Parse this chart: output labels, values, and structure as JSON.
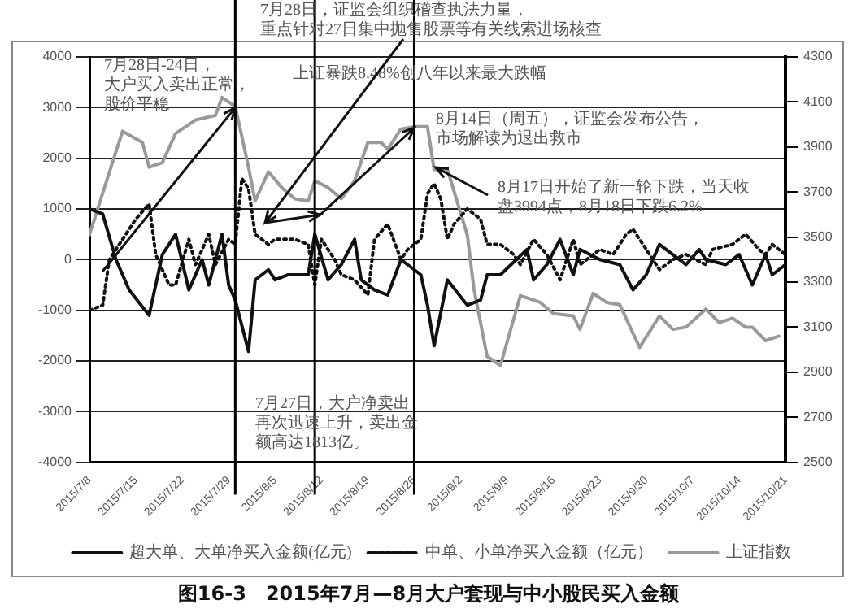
{
  "chart_data": {
    "type": "line",
    "title": "图16-3　2015年7月—8月大户套现与中小股民买入金额",
    "xlim": [
      "2015-07-08",
      "2015-10-21"
    ],
    "xticks": [
      {
        "value": "2015-07-08",
        "label": "2015/7/8"
      },
      {
        "value": "2015-07-15",
        "label": "2015/7/15"
      },
      {
        "value": "2015-07-22",
        "label": "2015/7/22"
      },
      {
        "value": "2015-07-29",
        "label": "2015/7/29"
      },
      {
        "value": "2015-08-05",
        "label": "2015/8/5"
      },
      {
        "value": "2015-08-12",
        "label": "2015/8/12"
      },
      {
        "value": "2015-08-19",
        "label": "2015/8/19"
      },
      {
        "value": "2015-08-26",
        "label": "2015/8/26"
      },
      {
        "value": "2015-09-02",
        "label": "2015/9/2"
      },
      {
        "value": "2015-09-09",
        "label": "2015/9/9"
      },
      {
        "value": "2015-09-16",
        "label": "2015/9/16"
      },
      {
        "value": "2015-09-23",
        "label": "2015/9/23"
      },
      {
        "value": "2015-09-30",
        "label": "2015/9/30"
      },
      {
        "value": "2015-10-07",
        "label": "2015/10/7"
      },
      {
        "value": "2015-10-14",
        "label": "2015/10/14"
      },
      {
        "value": "2015-10-21",
        "label": "2015/10/21"
      }
    ],
    "ylim": [
      -4000,
      4000
    ],
    "yticks": [
      -4000,
      -3000,
      -2000,
      -1000,
      0,
      1000,
      2000,
      3000,
      4000
    ],
    "y2lim": [
      2500,
      4300
    ],
    "y2ticks": [
      2500,
      2700,
      2900,
      3100,
      3300,
      3500,
      3700,
      3900,
      4100,
      4300
    ],
    "grid": "y",
    "legend": "bottom",
    "marker": "none",
    "series": [
      {
        "name": "超大单、大单净买入金额(亿元)",
        "color": "#111111",
        "line_style": "solid",
        "x": [
          "2015-07-08",
          "2015-07-10",
          "2015-07-12",
          "2015-07-14",
          "2015-07-17",
          "2015-07-19",
          "2015-07-21",
          "2015-07-23",
          "2015-07-25",
          "2015-07-26",
          "2015-07-28",
          "2015-07-29",
          "2015-07-30",
          "2015-08-01",
          "2015-08-02",
          "2015-08-04",
          "2015-08-05",
          "2015-08-07",
          "2015-08-08",
          "2015-08-10",
          "2015-08-11",
          "2015-08-13",
          "2015-08-15",
          "2015-08-17",
          "2015-08-18",
          "2015-08-20",
          "2015-08-22",
          "2015-08-24",
          "2015-08-26",
          "2015-08-27",
          "2015-08-28",
          "2015-08-29",
          "2015-08-31",
          "2015-09-03",
          "2015-09-05",
          "2015-09-06",
          "2015-09-08",
          "2015-09-12",
          "2015-09-13",
          "2015-09-15",
          "2015-09-17",
          "2015-09-19",
          "2015-09-20",
          "2015-09-23",
          "2015-09-26",
          "2015-09-28",
          "2015-09-30",
          "2015-10-02",
          "2015-10-04",
          "2015-10-06",
          "2015-10-08",
          "2015-10-09",
          "2015-10-12",
          "2015-10-14",
          "2015-10-16",
          "2015-10-18",
          "2015-10-19",
          "2015-10-21"
        ],
        "values": [
          1000,
          900,
          0,
          -600,
          -1100,
          100,
          500,
          -600,
          0,
          -500,
          500,
          -500,
          -800,
          -1813,
          -400,
          -200,
          -400,
          -300,
          -300,
          -300,
          500,
          -400,
          -100,
          400,
          -400,
          -600,
          -700,
          0,
          -200,
          -300,
          -900,
          -1700,
          -400,
          -900,
          -800,
          -300,
          -300,
          200,
          -400,
          -100,
          400,
          -300,
          200,
          0,
          -100,
          -600,
          -300,
          300,
          100,
          -100,
          200,
          0,
          -100,
          100,
          -500,
          100,
          -300,
          -100
        ]
      },
      {
        "name": "中单、小单净买入金额（亿元）",
        "color": "#111111",
        "line_style": "dotted",
        "x": [
          "2015-07-08",
          "2015-07-10",
          "2015-07-11",
          "2015-07-13",
          "2015-07-15",
          "2015-07-17",
          "2015-07-18",
          "2015-07-20",
          "2015-07-21",
          "2015-07-23",
          "2015-07-24",
          "2015-07-26",
          "2015-07-27",
          "2015-07-29",
          "2015-07-30",
          "2015-07-31",
          "2015-08-01",
          "2015-08-02",
          "2015-08-04",
          "2015-08-05",
          "2015-08-07",
          "2015-08-08",
          "2015-08-10",
          "2015-08-11",
          "2015-08-12",
          "2015-08-14",
          "2015-08-15",
          "2015-08-17",
          "2015-08-19",
          "2015-08-20",
          "2015-08-22",
          "2015-08-24",
          "2015-08-25",
          "2015-08-27",
          "2015-08-28",
          "2015-08-29",
          "2015-08-30",
          "2015-08-31",
          "2015-09-01",
          "2015-09-03",
          "2015-09-05",
          "2015-09-06",
          "2015-09-08",
          "2015-09-10",
          "2015-09-11",
          "2015-09-13",
          "2015-09-15",
          "2015-09-17",
          "2015-09-19",
          "2015-09-20",
          "2015-09-22",
          "2015-09-23",
          "2015-09-25",
          "2015-09-27",
          "2015-09-28",
          "2015-09-30",
          "2015-10-02",
          "2015-10-04",
          "2015-10-06",
          "2015-10-09",
          "2015-10-10",
          "2015-10-13",
          "2015-10-15",
          "2015-10-17",
          "2015-10-18",
          "2015-10-19",
          "2015-10-21"
        ],
        "values": [
          -1000,
          -900,
          0,
          400,
          800,
          1100,
          100,
          -500,
          -500,
          400,
          -100,
          500,
          -100,
          400,
          300,
          1600,
          1400,
          500,
          300,
          400,
          400,
          400,
          300,
          -500,
          400,
          0,
          -300,
          -400,
          -700,
          400,
          700,
          0,
          200,
          400,
          1300,
          1500,
          1200,
          400,
          700,
          1000,
          800,
          300,
          300,
          100,
          -100,
          400,
          100,
          -400,
          400,
          -100,
          100,
          200,
          100,
          500,
          600,
          200,
          -200,
          0,
          100,
          -100,
          200,
          300,
          500,
          200,
          100,
          300,
          100
        ]
      },
      {
        "name": "上证指数",
        "color": "#999999",
        "line_style": "solid",
        "axis": "y2",
        "x": [
          "2015-07-08",
          "2015-07-12",
          "2015-07-13",
          "2015-07-16",
          "2015-07-17",
          "2015-07-19",
          "2015-07-21",
          "2015-07-24",
          "2015-07-27",
          "2015-07-28",
          "2015-07-30",
          "2015-08-01",
          "2015-08-02",
          "2015-08-04",
          "2015-08-06",
          "2015-08-08",
          "2015-08-10",
          "2015-08-11",
          "2015-08-13",
          "2015-08-15",
          "2015-08-17",
          "2015-08-19",
          "2015-08-21",
          "2015-08-22",
          "2015-08-24",
          "2015-08-26",
          "2015-08-28",
          "2015-08-29",
          "2015-08-31",
          "2015-09-03",
          "2015-09-04",
          "2015-09-06",
          "2015-09-08",
          "2015-09-11",
          "2015-09-14",
          "2015-09-16",
          "2015-09-19",
          "2015-09-20",
          "2015-09-22",
          "2015-09-24",
          "2015-09-26",
          "2015-09-29",
          "2015-10-02",
          "2015-10-04",
          "2015-10-06",
          "2015-10-09",
          "2015-10-11",
          "2015-10-13",
          "2015-10-15",
          "2015-10-16",
          "2015-10-18",
          "2015-10-20"
        ],
        "values": [
          3510,
          3880,
          3970,
          3920,
          3810,
          3830,
          3960,
          4020,
          4040,
          4120,
          4080,
          3810,
          3660,
          3790,
          3720,
          3670,
          3660,
          3750,
          3720,
          3670,
          3750,
          3920,
          3920,
          3890,
          3980,
          3990,
          3990,
          3800,
          3800,
          3510,
          3270,
          2970,
          2930,
          3240,
          3210,
          3160,
          3150,
          3090,
          3250,
          3210,
          3200,
          3010,
          3150,
          3090,
          3100,
          3180,
          3120,
          3140,
          3100,
          3100,
          3040,
          3060
        ]
      }
    ],
    "ref_lines": [
      {
        "axis": "x",
        "value": "2015-07-30",
        "color": "#000000"
      },
      {
        "axis": "x",
        "value": "2015-08-11",
        "color": "#000000"
      },
      {
        "axis": "x",
        "value": "2015-08-26",
        "color": "#000000"
      }
    ],
    "annotations": [
      {
        "text": "7月28日-24日，大户买入卖出正常，股价平稳",
        "x": "2015-07-30",
        "y": 3000
      },
      "7月28日，证监会组织稽查执法力量，重点针对27日集中抛售股票等有关线索进场核查",
      "上证暴跌8.48%创八年以来最大跌幅",
      {
        "text": "8月14日（周五），证监会发布公告，市场解读为退出救市",
        "x": "2015-08-26",
        "y": 2600
      },
      "8月17日开始了新一轮下跌，当天收盘3994点，8月18日下跌6.2%",
      "7月27日，大户净卖出再次迅速上升，卖出金额高达1813亿。"
    ]
  }
}
